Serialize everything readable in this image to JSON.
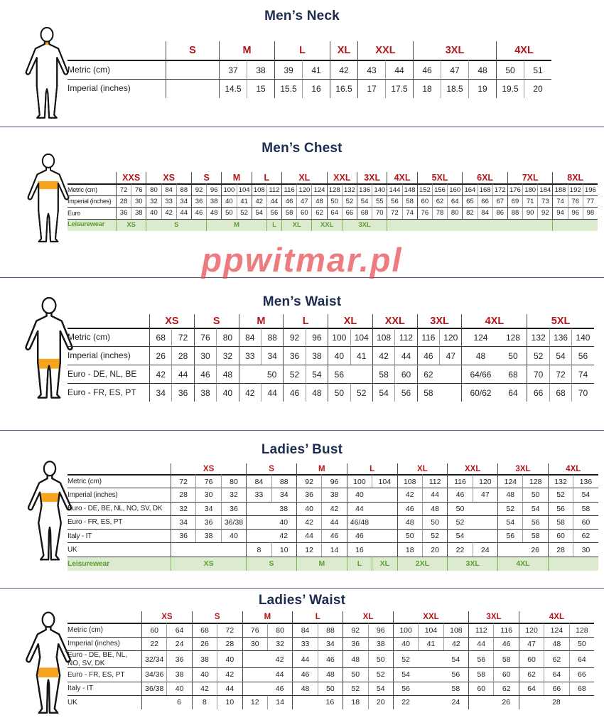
{
  "colors": {
    "title_navy": "#1d2b4f",
    "header_red": "#b5161b",
    "leisure_green_text": "#5f9e33",
    "leisure_green_bg": "#dcead0",
    "highlight_orange": "#f6a41e",
    "divider_navy": "#4c5f86",
    "watermark_red": "#e85156"
  },
  "watermark": {
    "text": "ppwitmar.pl"
  },
  "sections": [
    {
      "id": "mens-neck",
      "title": "Men’s Neck",
      "figure": "male",
      "highlight": "neck",
      "groups": [
        {
          "label": "S",
          "span": 1
        },
        {
          "label": "M",
          "span": 2
        },
        {
          "label": "L",
          "span": 2
        },
        {
          "label": "XL",
          "span": 1
        },
        {
          "label": "XXL",
          "span": 2
        },
        {
          "label": "3XL",
          "span": 3
        },
        {
          "label": "4XL",
          "span": 2
        }
      ],
      "rows": [
        {
          "label": "Metric  (cm)",
          "cells": [
            "",
            "37",
            "38",
            "39",
            "41",
            "42",
            "43",
            "44",
            "46",
            "47",
            "48",
            "50",
            "51"
          ]
        },
        {
          "label": "Imperial (inches)",
          "cells": [
            "",
            "14.5",
            "15",
            "15.5",
            "16",
            "16.5",
            "17",
            "17.5",
            "18",
            "18.5",
            "19",
            "19.5",
            "20"
          ]
        }
      ]
    },
    {
      "id": "mens-chest",
      "title": "Men’s Chest",
      "figure": "male",
      "highlight": "chest",
      "groups": [
        {
          "label": "XXS",
          "span": 2
        },
        {
          "label": "XS",
          "span": 3
        },
        {
          "label": "S",
          "span": 2
        },
        {
          "label": "M",
          "span": 2
        },
        {
          "label": "L",
          "span": 2
        },
        {
          "label": "XL",
          "span": 3
        },
        {
          "label": "XXL",
          "span": 2
        },
        {
          "label": "3XL",
          "span": 2
        },
        {
          "label": "4XL",
          "span": 2
        },
        {
          "label": "5XL",
          "span": 3
        },
        {
          "label": "6XL",
          "span": 3
        },
        {
          "label": "7XL",
          "span": 3
        },
        {
          "label": "8XL",
          "span": 3
        }
      ],
      "rows": [
        {
          "label": "Metric  (cm)",
          "cells": [
            "72",
            "76",
            "80",
            "84",
            "88",
            "92",
            "96",
            "100",
            "104",
            "108",
            "112",
            "116",
            "120",
            "124",
            "128",
            "132",
            "136",
            "140",
            "144",
            "148",
            "152",
            "156",
            "160",
            "164",
            "168",
            "172",
            "176",
            "180",
            "184",
            "188",
            "192",
            "196"
          ]
        },
        {
          "label": "Imperial (inches)",
          "cells": [
            "28",
            "30",
            "32",
            "33",
            "34",
            "36",
            "38",
            "40",
            "41",
            "42",
            "44",
            "46",
            "47",
            "48",
            "50",
            "52",
            "54",
            "55",
            "56",
            "58",
            "60",
            "62",
            "64",
            "65",
            "66",
            "67",
            "69",
            "71",
            "73",
            "74",
            "76",
            "77"
          ]
        },
        {
          "label": "Euro",
          "cells": [
            "36",
            "38",
            "40",
            "42",
            "44",
            "46",
            "48",
            "50",
            "52",
            "54",
            "56",
            "58",
            "60",
            "62",
            "64",
            "66",
            "68",
            "70",
            "72",
            "74",
            "76",
            "78",
            "80",
            "82",
            "84",
            "86",
            "88",
            "90",
            "92",
            "94",
            "96",
            "98"
          ]
        }
      ],
      "leisure": {
        "label": "Leisurewear",
        "cells": [
          {
            "label": "XS",
            "span": 2
          },
          {
            "label": "S",
            "span": 4
          },
          {
            "label": "M",
            "span": 4
          },
          {
            "label": "L",
            "span": 1
          },
          {
            "label": "XL",
            "span": 2
          },
          {
            "label": "XXL",
            "span": 2
          },
          {
            "label": "3XL",
            "span": 3
          },
          {
            "label": "",
            "span": 11
          },
          {
            "label": "",
            "span": 3
          }
        ]
      }
    },
    {
      "id": "mens-waist",
      "title": "Men’s Waist",
      "figure": "male",
      "highlight": "waist",
      "groups": [
        {
          "label": "XS",
          "span": 2
        },
        {
          "label": "S",
          "span": 2
        },
        {
          "label": "M",
          "span": 2
        },
        {
          "label": "L",
          "span": 2
        },
        {
          "label": "XL",
          "span": 2
        },
        {
          "label": "XXL",
          "span": 2
        },
        {
          "label": "3XL",
          "span": 2
        },
        {
          "label": "4XL",
          "span": 2,
          "no_inner": true
        },
        {
          "label": "5XL",
          "span": 3
        }
      ],
      "rows": [
        {
          "label": "Metric  (cm)",
          "cells": [
            "68",
            "72",
            "76",
            "80",
            "84",
            "88",
            "92",
            "96",
            "100",
            "104",
            "108",
            "112",
            "116",
            "120",
            "124",
            "128",
            "132",
            "136",
            "140"
          ]
        },
        {
          "label": "Imperial (inches)",
          "cells": [
            "26",
            "28",
            "30",
            "32",
            "33",
            "34",
            "36",
            "38",
            "40",
            "41",
            "42",
            "44",
            "46",
            "47",
            "48",
            "50",
            "52",
            "54",
            "56"
          ]
        },
        {
          "label": "Euro - DE, NL, BE",
          "cells": [
            "42",
            "44",
            "46",
            "48",
            "",
            "50",
            "52",
            "54",
            "56",
            "",
            "58",
            "60",
            "62",
            "",
            "64/66",
            "68",
            "70",
            "72",
            "74"
          ]
        },
        {
          "label": "Euro - FR, ES, PT",
          "cells": [
            "34",
            "36",
            "38",
            "40",
            "42",
            "44",
            "46",
            "48",
            "50",
            "52",
            "54",
            "56",
            "58",
            "",
            "60/62",
            "64",
            "66",
            "68",
            "70"
          ]
        }
      ]
    },
    {
      "id": "ladies-bust",
      "title": "Ladies’ Bust",
      "figure": "female",
      "highlight": "bust",
      "groups": [
        {
          "label": "XS",
          "span": 3
        },
        {
          "label": "S",
          "span": 2
        },
        {
          "label": "M",
          "span": 2
        },
        {
          "label": "L",
          "span": 2
        },
        {
          "label": "XL",
          "span": 2
        },
        {
          "label": "XXL",
          "span": 2
        },
        {
          "label": "3XL",
          "span": 2
        },
        {
          "label": "4XL",
          "span": 2
        }
      ],
      "rows": [
        {
          "label": "Metric  (cm)",
          "cells": [
            "72",
            "76",
            "80",
            "84",
            "88",
            "92",
            "96",
            "100",
            "104",
            "108",
            "112",
            "116",
            "120",
            "124",
            "128",
            "132",
            "136"
          ]
        },
        {
          "label": "Imperial (inches)",
          "cells": [
            "28",
            "30",
            "32",
            "33",
            "34",
            "36",
            "38",
            "40",
            "",
            "42",
            "44",
            "46",
            "47",
            "48",
            "50",
            "52",
            "54"
          ]
        },
        {
          "label": "Euro -  DE, BE, NL, NO, SV, DK",
          "cells": [
            "32",
            "34",
            "36",
            "",
            "38",
            "40",
            "42",
            "44",
            "",
            "46",
            "48",
            "50",
            "",
            "52",
            "54",
            "56",
            "58"
          ]
        },
        {
          "label": "Euro - FR, ES, PT",
          "cells": [
            "34",
            "36",
            "36/38",
            "",
            "40",
            "42",
            "44",
            "46/48",
            "",
            "48",
            "50",
            "52",
            "",
            "54",
            "56",
            "58",
            "60"
          ]
        },
        {
          "label": "Italy - IT",
          "cells": [
            "36",
            "38",
            "40",
            "",
            "42",
            "44",
            "46",
            "46",
            "",
            "50",
            "52",
            "54",
            "",
            "56",
            "58",
            "60",
            "62"
          ]
        },
        {
          "label": "UK",
          "cells": [
            "",
            "",
            "",
            "8",
            "10",
            "12",
            "14",
            "16",
            "",
            "18",
            "20",
            "22",
            "24",
            "",
            "26",
            "28",
            "30"
          ]
        }
      ],
      "leisure": {
        "label": "Leisurewear",
        "cells": [
          {
            "label": "XS",
            "span": 3
          },
          {
            "label": "S",
            "span": 2
          },
          {
            "label": "M",
            "span": 2
          },
          {
            "label": "L",
            "span": 1
          },
          {
            "label": "XL",
            "span": 1
          },
          {
            "label": "2XL",
            "span": 2
          },
          {
            "label": "3XL",
            "span": 2
          },
          {
            "label": "4XL",
            "span": 2
          },
          {
            "label": "",
            "span": 2
          }
        ]
      }
    },
    {
      "id": "ladies-waist",
      "title": "Ladies’ Waist",
      "figure": "female",
      "highlight": "waist",
      "groups": [
        {
          "label": "XS",
          "span": 2
        },
        {
          "label": "S",
          "span": 2
        },
        {
          "label": "M",
          "span": 2
        },
        {
          "label": "L",
          "span": 2
        },
        {
          "label": "XL",
          "span": 2
        },
        {
          "label": "XXL",
          "span": 3
        },
        {
          "label": "3XL",
          "span": 2
        },
        {
          "label": "4XL",
          "span": 3
        }
      ],
      "rows": [
        {
          "label": "Metric  (cm)",
          "cells": [
            "60",
            "64",
            "68",
            "72",
            "76",
            "80",
            "84",
            "88",
            "92",
            "96",
            "100",
            "104",
            "108",
            "112",
            "116",
            "120",
            "124",
            "128"
          ]
        },
        {
          "label": "Imperial (inches)",
          "cells": [
            "22",
            "24",
            "26",
            "28",
            "30",
            "32",
            "33",
            "34",
            "36",
            "38",
            "40",
            "41",
            "42",
            "44",
            "46",
            "47",
            "48",
            "50"
          ]
        },
        {
          "label": "Euro - DE, BE, NL, NO, SV, DK",
          "cells": [
            "32/34",
            "36",
            "38",
            "40",
            "",
            "42",
            "44",
            "46",
            "48",
            "50",
            "52",
            "",
            "54",
            "56",
            "58",
            "60",
            "62",
            "64"
          ]
        },
        {
          "label": "Euro - FR, ES, PT",
          "cells": [
            "34/36",
            "38",
            "40",
            "42",
            "",
            "44",
            "46",
            "48",
            "50",
            "52",
            "54",
            "",
            "56",
            "58",
            "60",
            "62",
            "64",
            "66"
          ]
        },
        {
          "label": "Italy - IT",
          "cells": [
            "36/38",
            "40",
            "42",
            "44",
            "",
            "46",
            "48",
            "50",
            "52",
            "54",
            "56",
            "",
            "58",
            "60",
            "62",
            "64",
            "66",
            "68"
          ]
        },
        {
          "label": "UK",
          "cells": [
            "",
            "6",
            "8",
            "10",
            "12",
            "14",
            "",
            "16",
            "18",
            "20",
            "22",
            "",
            "24",
            "",
            "26",
            "",
            "28",
            ""
          ]
        }
      ]
    }
  ]
}
